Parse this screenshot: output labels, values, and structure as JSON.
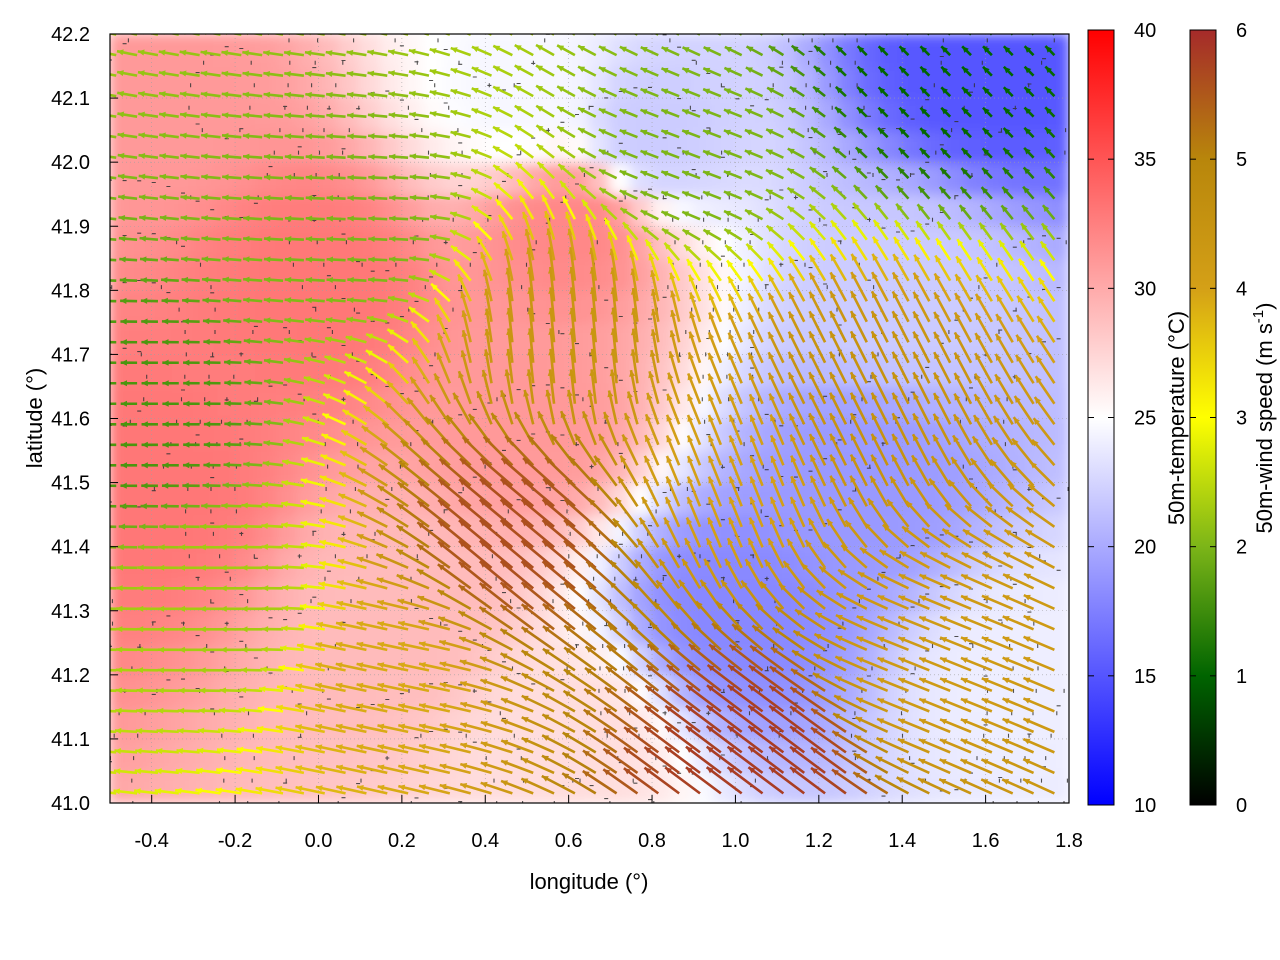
{
  "chart_data": {
    "type": "heatmap",
    "xlabel": "longitude (°)",
    "ylabel": "latitude (°)",
    "xlim": [
      -0.5,
      1.8
    ],
    "ylim": [
      41.0,
      42.2
    ],
    "x_ticks": [
      "-0.4",
      "-0.2",
      "0.0",
      "0.2",
      "0.4",
      "0.6",
      "0.8",
      "1.0",
      "1.2",
      "1.4",
      "1.6",
      "1.8"
    ],
    "y_ticks": [
      "41.0",
      "41.1",
      "41.2",
      "41.3",
      "41.4",
      "41.5",
      "41.6",
      "41.7",
      "41.8",
      "41.9",
      "42.0",
      "42.1",
      "42.2"
    ],
    "grid": true,
    "temperature_colorbar": {
      "label": "50m-temperature (°C)",
      "range": [
        10,
        40
      ],
      "ticks": [
        "10",
        "15",
        "20",
        "25",
        "30",
        "35",
        "40"
      ],
      "colors": [
        "#0000ff",
        "#ffffff",
        "#ff0000"
      ]
    },
    "wind_colorbar": {
      "label_main": "50m-wind speed (m s",
      "label_sup": "-1",
      "label_end": ")",
      "range": [
        0,
        6
      ],
      "ticks": [
        "0",
        "1",
        "2",
        "3",
        "4",
        "5",
        "6"
      ],
      "colors": [
        "#000000",
        "#006400",
        "#7cb518",
        "#ffff00",
        "#d4a017",
        "#b8860b",
        "#a52a2a"
      ]
    },
    "temperature_field": {
      "description_points": [
        {
          "lon": -0.4,
          "lat": 41.5,
          "t": 33.0
        },
        {
          "lon": -0.4,
          "lat": 42.1,
          "t": 31.0
        },
        {
          "lon": 0.0,
          "lat": 41.8,
          "t": 33.0
        },
        {
          "lon": 0.2,
          "lat": 41.3,
          "t": 29.0
        },
        {
          "lon": 0.5,
          "lat": 41.6,
          "t": 31.0
        },
        {
          "lon": 0.6,
          "lat": 41.9,
          "t": 32.0
        },
        {
          "lon": 0.5,
          "lat": 42.1,
          "t": 24.5
        },
        {
          "lon": 0.8,
          "lat": 42.05,
          "t": 22.0
        },
        {
          "lon": 1.0,
          "lat": 41.3,
          "t": 18.0
        },
        {
          "lon": 1.3,
          "lat": 41.5,
          "t": 19.0
        },
        {
          "lon": 1.4,
          "lat": 41.8,
          "t": 22.0
        },
        {
          "lon": 1.6,
          "lat": 42.15,
          "t": 15.0
        },
        {
          "lon": 1.7,
          "lat": 41.2,
          "t": 24.0
        },
        {
          "lon": 0.6,
          "lat": 41.1,
          "t": 27.0
        }
      ]
    },
    "wind_samples": [
      {
        "lon": -0.4,
        "lat": 41.6,
        "u": -1.6,
        "v": 0.0,
        "speed": 1.6
      },
      {
        "lon": -0.2,
        "lat": 41.3,
        "u": -2.3,
        "v": 0.0,
        "speed": 2.3
      },
      {
        "lon": 0.1,
        "lat": 41.9,
        "u": -2.0,
        "v": 0.1,
        "speed": 2.0
      },
      {
        "lon": 0.2,
        "lat": 41.2,
        "u": -3.8,
        "v": 0.8,
        "speed": 3.9
      },
      {
        "lon": 0.5,
        "lat": 41.4,
        "u": -3.0,
        "v": 2.5,
        "speed": 5.6
      },
      {
        "lon": 0.6,
        "lat": 41.7,
        "u": -0.3,
        "v": 3.0,
        "speed": 4.4
      },
      {
        "lon": 1.0,
        "lat": 41.5,
        "u": -1.0,
        "v": 2.5,
        "speed": 4.0
      },
      {
        "lon": 1.1,
        "lat": 41.05,
        "u": -2.0,
        "v": 1.5,
        "speed": 5.8
      },
      {
        "lon": 1.3,
        "lat": 41.6,
        "u": -1.0,
        "v": 2.0,
        "speed": 4.5
      },
      {
        "lon": 1.5,
        "lat": 41.2,
        "u": -3.0,
        "v": 1.2,
        "speed": 4.2
      },
      {
        "lon": 1.5,
        "lat": 42.15,
        "u": -0.5,
        "v": 0.5,
        "speed": 1.0
      },
      {
        "lon": 0.9,
        "lat": 42.0,
        "u": -0.8,
        "v": 0.3,
        "speed": 2.0
      }
    ]
  }
}
